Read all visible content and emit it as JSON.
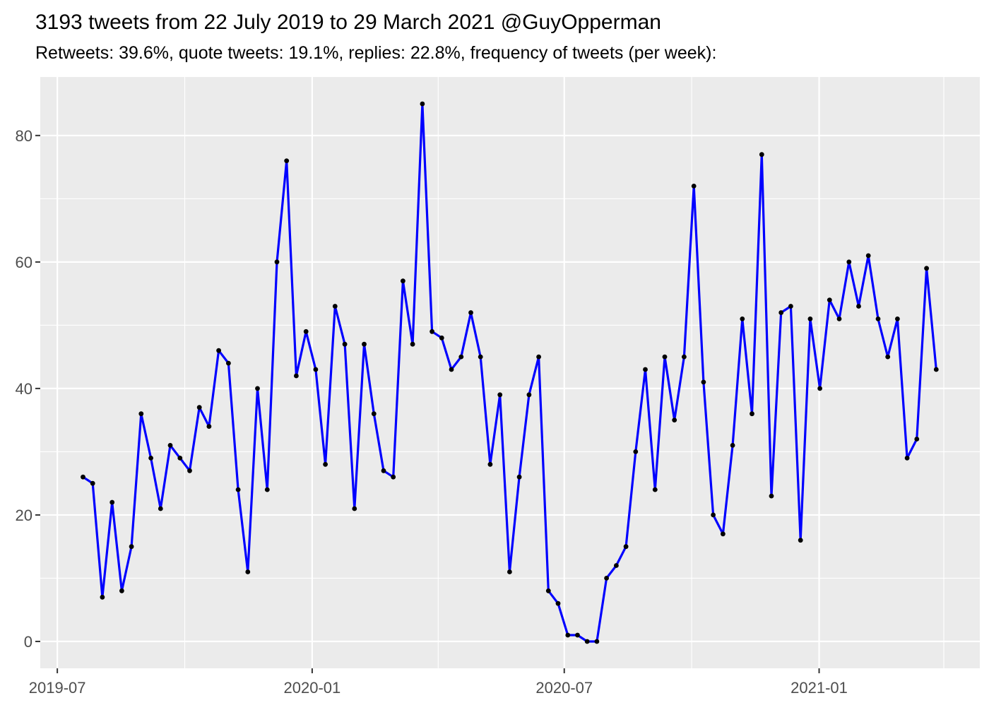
{
  "header": {
    "title": "3193 tweets from 22 July 2019 to 29 March 2021 @GuyOpperman",
    "subtitle": "Retweets: 39.6%, quote tweets: 19.1%, replies: 22.8%, frequency of tweets (per week):"
  },
  "chart_data": {
    "type": "line",
    "title": "3193 tweets from 22 July 2019 to 29 March 2021 @GuyOpperman",
    "subtitle": "Retweets: 39.6%, quote tweets: 19.1%, replies: 22.8%, frequency of tweets (per week):",
    "series_name": "tweets per week",
    "x_start_date": "2019-07-22",
    "x_interval_days": 7,
    "n_points": 89,
    "values": [
      26,
      25,
      7,
      22,
      8,
      15,
      36,
      29,
      21,
      31,
      29,
      27,
      37,
      34,
      46,
      44,
      24,
      11,
      40,
      24,
      60,
      76,
      42,
      49,
      43,
      28,
      53,
      47,
      21,
      47,
      36,
      27,
      26,
      57,
      47,
      85,
      49,
      48,
      43,
      45,
      52,
      45,
      28,
      39,
      11,
      26,
      39,
      45,
      8,
      6,
      1,
      1,
      0,
      0,
      10,
      12,
      15,
      30,
      43,
      24,
      45,
      35,
      45,
      72,
      41,
      20,
      17,
      31,
      51,
      36,
      77,
      23,
      52,
      53,
      16,
      51,
      40,
      54,
      51,
      60,
      53,
      61,
      51,
      45,
      51,
      29,
      32,
      59,
      43
    ],
    "x_ticks": [
      {
        "label": "2019-07",
        "date": "2019-07-01"
      },
      {
        "label": "2020-01",
        "date": "2020-01-01"
      },
      {
        "label": "2020-07",
        "date": "2020-07-01"
      },
      {
        "label": "2021-01",
        "date": "2021-01-01"
      }
    ],
    "x_minor_tick_dates": [
      "2019-10-01",
      "2020-04-01",
      "2020-10-01",
      "2021-04-01"
    ],
    "y_ticks": [
      0,
      20,
      40,
      60,
      80
    ],
    "y_minor_ticks": [
      10,
      30,
      50,
      70
    ],
    "ylim": [
      -4.25,
      89.25
    ],
    "grid": true,
    "legend": "none",
    "colors": {
      "line": "#0000FF",
      "point": "#000000",
      "panel_background": "#EBEBEB",
      "gridline": "#FFFFFF",
      "axis_text": "#4D4D4D",
      "tick_mark": "#333333",
      "title_text": "#000000"
    }
  }
}
